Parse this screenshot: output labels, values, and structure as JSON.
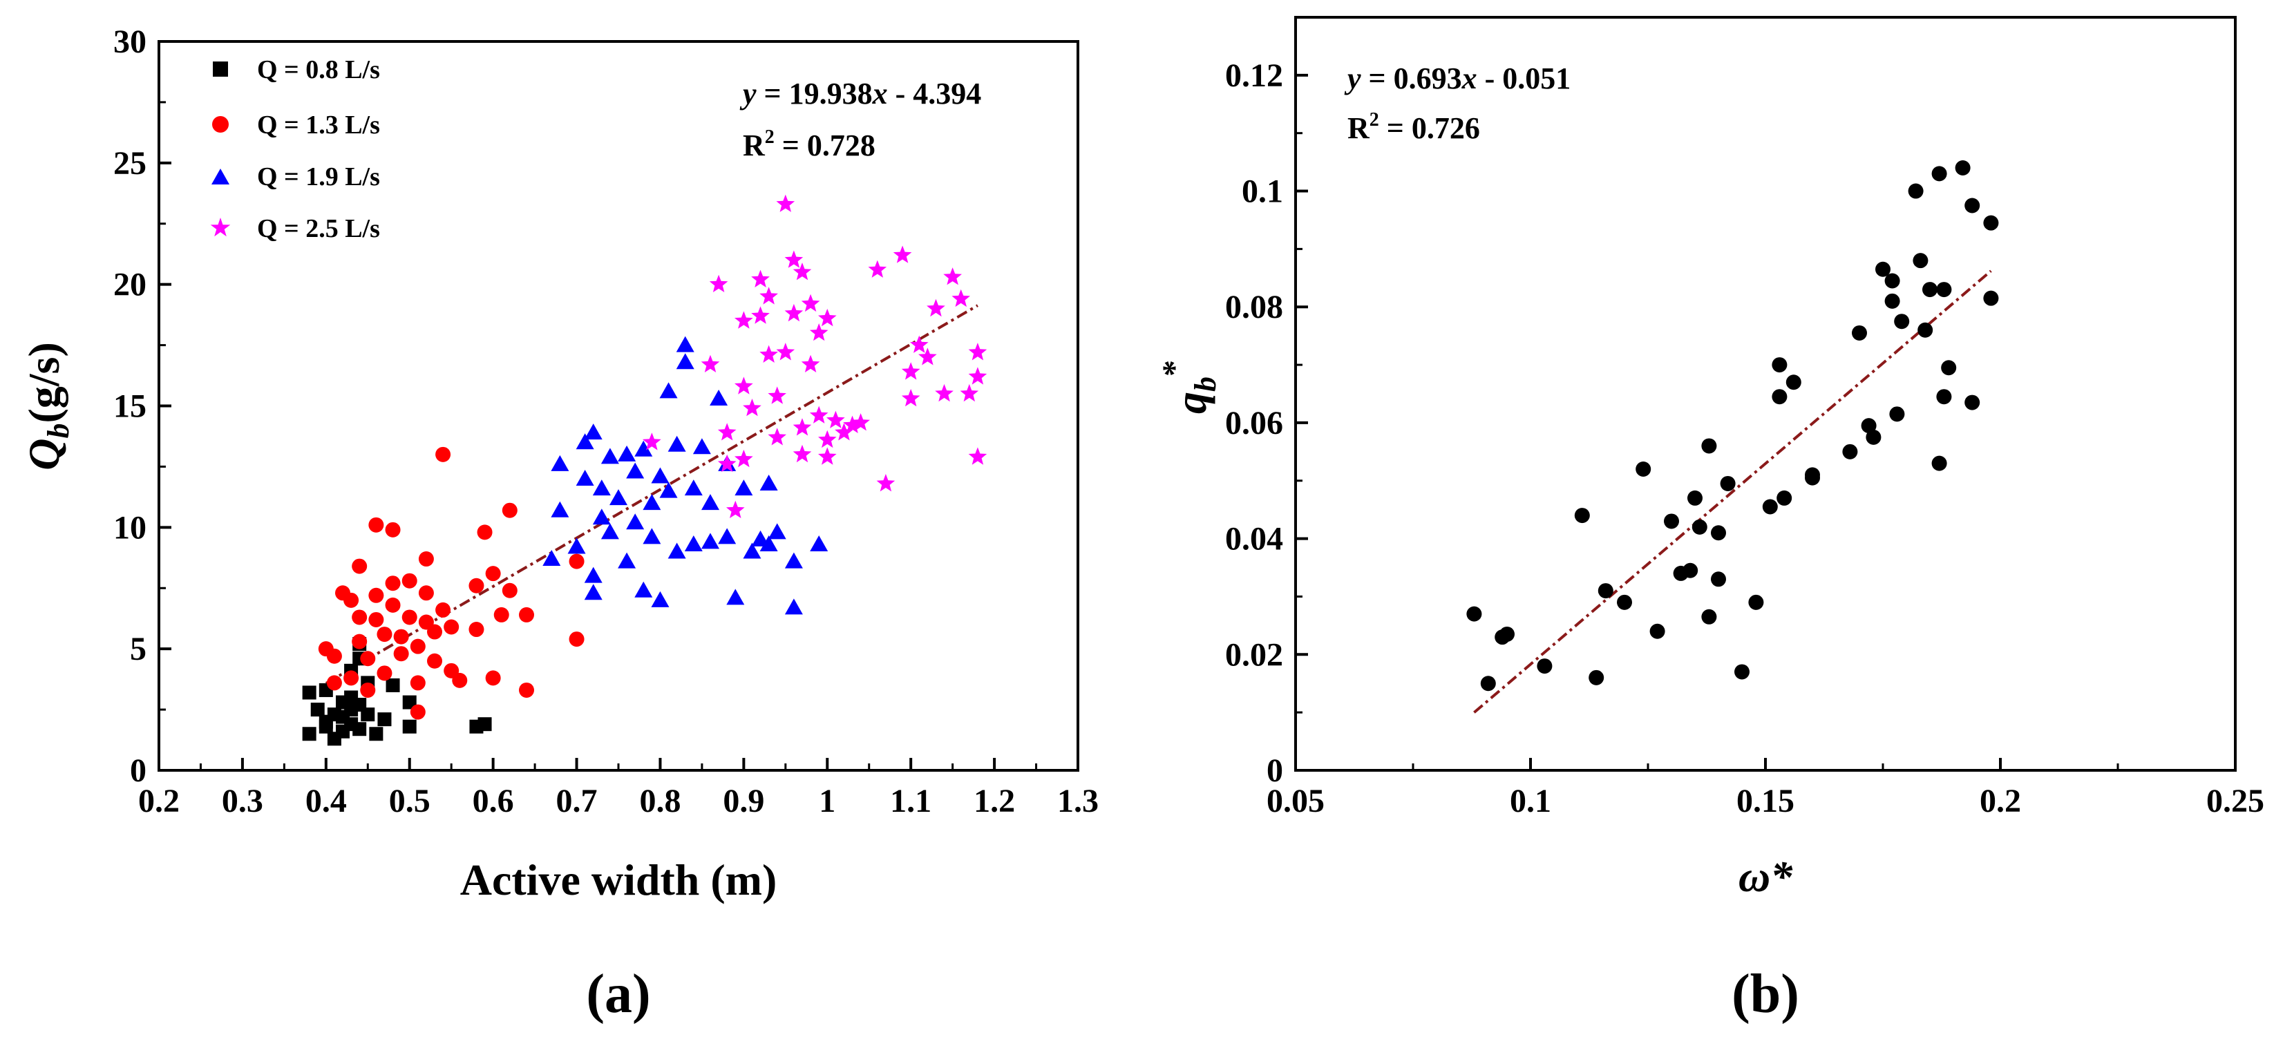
{
  "chart_data": [
    {
      "type": "scatter",
      "panel_label": "(a)",
      "xlabel": "Active width (m)",
      "ylabel": {
        "main": "Q",
        "sub": "b",
        "unit": "(g/s)"
      },
      "xlim": [
        0.2,
        1.3
      ],
      "ylim": [
        0,
        30
      ],
      "xticks": [
        "0.2",
        "0.3",
        "0.4",
        "0.5",
        "0.6",
        "0.7",
        "0.8",
        "0.9",
        "1",
        "1.1",
        "1.2",
        "1.3"
      ],
      "yticks": [
        "0",
        "5",
        "10",
        "15",
        "20",
        "25",
        "30"
      ],
      "legend_position": "top-left",
      "fit": {
        "slope": 19.938,
        "intercept": -4.394,
        "x_range": [
          0.4,
          1.18
        ],
        "color": "#8B1A1A",
        "equation": {
          "y": "y",
          "mid": " = 19.938",
          "x": "x",
          "tail": " - 4.394"
        },
        "r2": {
          "base": "R",
          "sup": "2",
          "tail": " = 0.728"
        }
      },
      "series": [
        {
          "name": "Q = 0.8 L/s",
          "marker": "square",
          "color": "#000000",
          "points": [
            [
              0.38,
              1.5
            ],
            [
              0.38,
              3.2
            ],
            [
              0.39,
              2.5
            ],
            [
              0.4,
              2.0
            ],
            [
              0.4,
              3.3
            ],
            [
              0.4,
              1.8
            ],
            [
              0.41,
              2.3
            ],
            [
              0.41,
              1.3
            ],
            [
              0.42,
              2.8
            ],
            [
              0.42,
              1.6
            ],
            [
              0.42,
              2.2
            ],
            [
              0.43,
              4.1
            ],
            [
              0.43,
              3.0
            ],
            [
              0.43,
              2.5
            ],
            [
              0.43,
              1.9
            ],
            [
              0.44,
              5.2
            ],
            [
              0.44,
              4.6
            ],
            [
              0.44,
              2.7
            ],
            [
              0.44,
              1.7
            ],
            [
              0.45,
              3.6
            ],
            [
              0.45,
              2.3
            ],
            [
              0.46,
              1.5
            ],
            [
              0.47,
              2.1
            ],
            [
              0.48,
              3.5
            ],
            [
              0.5,
              2.8
            ],
            [
              0.5,
              1.8
            ],
            [
              0.58,
              1.8
            ],
            [
              0.59,
              1.9
            ]
          ]
        },
        {
          "name": "Q = 1.3 L/s",
          "marker": "circle",
          "color": "#FF0000",
          "points": [
            [
              0.4,
              5.0
            ],
            [
              0.41,
              3.6
            ],
            [
              0.41,
              4.7
            ],
            [
              0.42,
              7.3
            ],
            [
              0.43,
              3.8
            ],
            [
              0.43,
              7.0
            ],
            [
              0.44,
              8.4
            ],
            [
              0.44,
              6.3
            ],
            [
              0.44,
              5.3
            ],
            [
              0.45,
              4.6
            ],
            [
              0.45,
              3.3
            ],
            [
              0.46,
              10.1
            ],
            [
              0.46,
              7.2
            ],
            [
              0.46,
              6.2
            ],
            [
              0.47,
              5.6
            ],
            [
              0.47,
              4.0
            ],
            [
              0.48,
              9.9
            ],
            [
              0.48,
              7.7
            ],
            [
              0.48,
              6.8
            ],
            [
              0.49,
              5.5
            ],
            [
              0.49,
              4.8
            ],
            [
              0.5,
              7.8
            ],
            [
              0.5,
              6.3
            ],
            [
              0.51,
              5.1
            ],
            [
              0.51,
              3.6
            ],
            [
              0.51,
              2.4
            ],
            [
              0.52,
              8.7
            ],
            [
              0.52,
              7.3
            ],
            [
              0.52,
              6.1
            ],
            [
              0.53,
              5.7
            ],
            [
              0.53,
              4.5
            ],
            [
              0.54,
              13.0
            ],
            [
              0.54,
              6.6
            ],
            [
              0.55,
              5.9
            ],
            [
              0.55,
              4.1
            ],
            [
              0.56,
              3.7
            ],
            [
              0.58,
              7.6
            ],
            [
              0.58,
              5.8
            ],
            [
              0.59,
              9.8
            ],
            [
              0.6,
              8.1
            ],
            [
              0.6,
              3.8
            ],
            [
              0.61,
              6.4
            ],
            [
              0.62,
              10.7
            ],
            [
              0.62,
              7.4
            ],
            [
              0.64,
              6.4
            ],
            [
              0.64,
              3.3
            ],
            [
              0.7,
              5.4
            ],
            [
              0.7,
              8.6
            ]
          ]
        },
        {
          "name": "Q = 1.9 L/s",
          "marker": "triangle",
          "color": "#0000FF",
          "points": [
            [
              0.67,
              8.7
            ],
            [
              0.68,
              12.6
            ],
            [
              0.68,
              10.7
            ],
            [
              0.7,
              9.2
            ],
            [
              0.71,
              13.5
            ],
            [
              0.71,
              12.0
            ],
            [
              0.72,
              13.9
            ],
            [
              0.72,
              8.0
            ],
            [
              0.72,
              7.3
            ],
            [
              0.73,
              11.6
            ],
            [
              0.73,
              10.4
            ],
            [
              0.74,
              12.9
            ],
            [
              0.74,
              9.8
            ],
            [
              0.75,
              11.2
            ],
            [
              0.76,
              13.0
            ],
            [
              0.76,
              8.6
            ],
            [
              0.77,
              10.2
            ],
            [
              0.77,
              12.3
            ],
            [
              0.78,
              13.2
            ],
            [
              0.78,
              7.4
            ],
            [
              0.79,
              11.0
            ],
            [
              0.79,
              9.6
            ],
            [
              0.8,
              12.1
            ],
            [
              0.8,
              7.0
            ],
            [
              0.81,
              11.5
            ],
            [
              0.81,
              15.6
            ],
            [
              0.82,
              13.4
            ],
            [
              0.82,
              9.0
            ],
            [
              0.83,
              17.5
            ],
            [
              0.83,
              16.8
            ],
            [
              0.84,
              11.6
            ],
            [
              0.84,
              9.3
            ],
            [
              0.85,
              13.3
            ],
            [
              0.86,
              11.0
            ],
            [
              0.86,
              9.4
            ],
            [
              0.87,
              15.3
            ],
            [
              0.88,
              12.6
            ],
            [
              0.88,
              9.6
            ],
            [
              0.89,
              7.1
            ],
            [
              0.9,
              11.6
            ],
            [
              0.91,
              9.0
            ],
            [
              0.92,
              9.5
            ],
            [
              0.93,
              11.8
            ],
            [
              0.93,
              9.3
            ],
            [
              0.94,
              9.8
            ],
            [
              0.96,
              8.6
            ],
            [
              0.96,
              6.7
            ],
            [
              0.99,
              9.3
            ]
          ]
        },
        {
          "name": "Q = 2.5 L/s",
          "marker": "star",
          "color": "#FF00FF",
          "points": [
            [
              0.79,
              13.5
            ],
            [
              0.86,
              16.7
            ],
            [
              0.87,
              20.0
            ],
            [
              0.88,
              12.6
            ],
            [
              0.88,
              13.9
            ],
            [
              0.89,
              10.7
            ],
            [
              0.9,
              18.5
            ],
            [
              0.9,
              15.8
            ],
            [
              0.9,
              12.8
            ],
            [
              0.91,
              14.9
            ],
            [
              0.92,
              20.2
            ],
            [
              0.92,
              18.7
            ],
            [
              0.93,
              19.5
            ],
            [
              0.93,
              17.1
            ],
            [
              0.94,
              15.4
            ],
            [
              0.94,
              13.7
            ],
            [
              0.95,
              23.3
            ],
            [
              0.95,
              17.2
            ],
            [
              0.96,
              21.0
            ],
            [
              0.96,
              18.8
            ],
            [
              0.97,
              14.1
            ],
            [
              0.97,
              20.5
            ],
            [
              0.97,
              13.0
            ],
            [
              0.98,
              19.2
            ],
            [
              0.98,
              16.7
            ],
            [
              0.99,
              18.0
            ],
            [
              0.99,
              14.6
            ],
            [
              1.0,
              13.6
            ],
            [
              1.0,
              12.9
            ],
            [
              1.0,
              18.6
            ],
            [
              1.01,
              14.4
            ],
            [
              1.02,
              13.9
            ],
            [
              1.03,
              14.2
            ],
            [
              1.04,
              14.3
            ],
            [
              1.06,
              20.6
            ],
            [
              1.07,
              11.8
            ],
            [
              1.09,
              21.2
            ],
            [
              1.1,
              15.3
            ],
            [
              1.1,
              16.4
            ],
            [
              1.11,
              17.5
            ],
            [
              1.12,
              17.0
            ],
            [
              1.13,
              19.0
            ],
            [
              1.14,
              15.5
            ],
            [
              1.15,
              20.3
            ],
            [
              1.16,
              19.4
            ],
            [
              1.17,
              15.5
            ],
            [
              1.18,
              17.2
            ],
            [
              1.18,
              16.2
            ],
            [
              1.18,
              12.9
            ]
          ]
        }
      ]
    },
    {
      "type": "scatter",
      "panel_label": "(b)",
      "xlabel": "ω*",
      "ylabel": {
        "main": "q",
        "sub": "b",
        "sup": "*"
      },
      "xlim": [
        0.05,
        0.25
      ],
      "ylim": [
        0,
        0.13
      ],
      "xticks": [
        "0.05",
        "0.1",
        "0.15",
        "0.2",
        "0.25"
      ],
      "yticks": [
        "0",
        "0.02",
        "0.04",
        "0.06",
        "0.08",
        "0.1",
        "0.12"
      ],
      "fit": {
        "slope": 0.693,
        "intercept": -0.051,
        "x_range": [
          0.088,
          0.198
        ],
        "color": "#8B1A1A",
        "equation": {
          "y": "y",
          "mid": " = 0.693",
          "x": "x",
          "tail": " - 0.051"
        },
        "r2": {
          "base": "R",
          "sup": "2",
          "tail": " = 0.726"
        }
      },
      "series": [
        {
          "name": "data",
          "marker": "circle",
          "color": "#000000",
          "points": [
            [
              0.088,
              0.027
            ],
            [
              0.091,
              0.015
            ],
            [
              0.094,
              0.023
            ],
            [
              0.095,
              0.0235
            ],
            [
              0.103,
              0.018
            ],
            [
              0.111,
              0.044
            ],
            [
              0.114,
              0.016
            ],
            [
              0.116,
              0.031
            ],
            [
              0.12,
              0.029
            ],
            [
              0.124,
              0.052
            ],
            [
              0.127,
              0.024
            ],
            [
              0.13,
              0.043
            ],
            [
              0.132,
              0.034
            ],
            [
              0.134,
              0.0345
            ],
            [
              0.135,
              0.047
            ],
            [
              0.136,
              0.042
            ],
            [
              0.138,
              0.056
            ],
            [
              0.138,
              0.0265
            ],
            [
              0.14,
              0.041
            ],
            [
              0.14,
              0.033
            ],
            [
              0.142,
              0.0495
            ],
            [
              0.145,
              0.017
            ],
            [
              0.148,
              0.029
            ],
            [
              0.151,
              0.0455
            ],
            [
              0.153,
              0.0645
            ],
            [
              0.153,
              0.07
            ],
            [
              0.154,
              0.047
            ],
            [
              0.156,
              0.067
            ],
            [
              0.16,
              0.051
            ],
            [
              0.16,
              0.0505
            ],
            [
              0.168,
              0.055
            ],
            [
              0.17,
              0.0755
            ],
            [
              0.172,
              0.0595
            ],
            [
              0.173,
              0.0575
            ],
            [
              0.175,
              0.0865
            ],
            [
              0.177,
              0.0845
            ],
            [
              0.177,
              0.081
            ],
            [
              0.178,
              0.0615
            ],
            [
              0.179,
              0.0775
            ],
            [
              0.182,
              0.1
            ],
            [
              0.183,
              0.088
            ],
            [
              0.184,
              0.076
            ],
            [
              0.185,
              0.083
            ],
            [
              0.187,
              0.103
            ],
            [
              0.187,
              0.053
            ],
            [
              0.188,
              0.083
            ],
            [
              0.188,
              0.0645
            ],
            [
              0.189,
              0.0695
            ],
            [
              0.192,
              0.104
            ],
            [
              0.194,
              0.0975
            ],
            [
              0.194,
              0.0635
            ],
            [
              0.198,
              0.0945
            ],
            [
              0.198,
              0.0815
            ]
          ]
        }
      ]
    }
  ]
}
